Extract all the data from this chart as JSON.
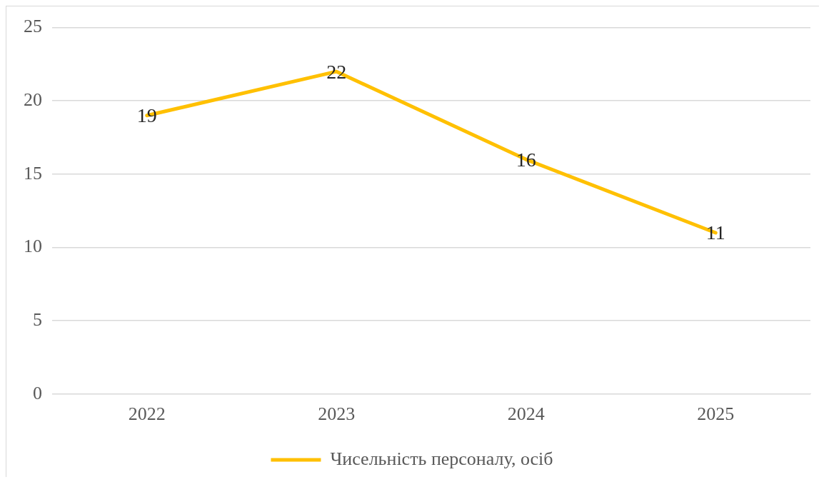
{
  "chart_data": {
    "type": "line",
    "categories": [
      "2022",
      "2023",
      "2024",
      "2025"
    ],
    "series": [
      {
        "name": "Чисельність персоналу, осіб",
        "color": "#ffc000",
        "values": [
          19,
          22,
          16,
          11
        ]
      }
    ],
    "ylim": [
      0,
      25
    ],
    "yticks": [
      0,
      5,
      10,
      15,
      20,
      25
    ],
    "grid": "y",
    "legend": "bottom",
    "data_labels": true,
    "marker": "none",
    "line_style": "solid"
  }
}
